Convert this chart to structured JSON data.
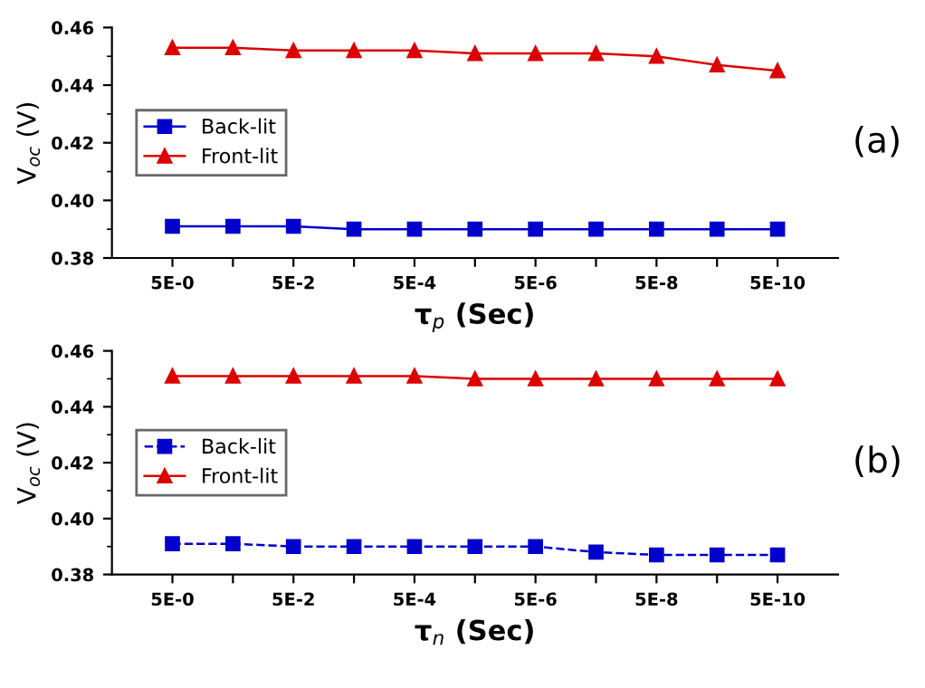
{
  "chart_data": [
    {
      "type": "line",
      "xlabel": "τ$_{p}$ (Sec)",
      "ylabel": "V$_{oc}$ (V)",
      "annotations": [
        "(a)"
      ],
      "categories": [
        "5E-0",
        null,
        "5E-2",
        null,
        "5E-4",
        null,
        "5E-6",
        null,
        "5E-8",
        null,
        "5E-10"
      ],
      "ylim": [
        0.38,
        0.46
      ],
      "yticks": [
        0.38,
        {
          "value": 0.4,
          "label": "0.40"
        },
        0.42,
        0.44,
        0.46
      ],
      "legend": "left",
      "grid": false,
      "series": [
        {
          "name": "Back-lit",
          "color": "#0000cc",
          "marker": "square",
          "line_style": "solid",
          "values": [
            0.391,
            0.391,
            0.391,
            0.39,
            0.39,
            0.39,
            0.39,
            0.39,
            0.39,
            0.39,
            0.39
          ]
        },
        {
          "name": "Front-lit",
          "color": "#dd0000",
          "marker": "triangle",
          "line_style": "solid",
          "values": [
            0.453,
            0.453,
            0.452,
            0.452,
            0.452,
            0.451,
            0.451,
            0.451,
            0.45,
            0.447,
            0.445
          ]
        }
      ]
    },
    {
      "type": "line",
      "xlabel": "τ$_{n}$ (Sec)",
      "ylabel": "V$_{oc}$ (V)",
      "annotations": [
        "(b)"
      ],
      "categories": [
        "5E-0",
        null,
        "5E-2",
        null,
        "5E-4",
        null,
        "5E-6",
        null,
        "5E-8",
        null,
        "5E-10"
      ],
      "ylim": [
        0.38,
        0.46
      ],
      "yticks": [
        0.38,
        {
          "value": 0.4,
          "label": "0.40"
        },
        0.42,
        0.44,
        0.46
      ],
      "legend": "left",
      "grid": false,
      "series": [
        {
          "name": "Back-lit",
          "color": "#0000cc",
          "marker": "square",
          "line_style": "dashed",
          "values": [
            0.391,
            0.391,
            0.39,
            0.39,
            0.39,
            0.39,
            0.39,
            0.388,
            0.387,
            0.387,
            0.387
          ]
        },
        {
          "name": "Front-lit",
          "color": "#dd0000",
          "marker": "triangle",
          "line_style": "solid",
          "values": [
            0.451,
            0.451,
            0.451,
            0.451,
            0.451,
            0.45,
            0.45,
            0.45,
            0.45,
            0.45,
            0.45
          ]
        }
      ]
    }
  ]
}
